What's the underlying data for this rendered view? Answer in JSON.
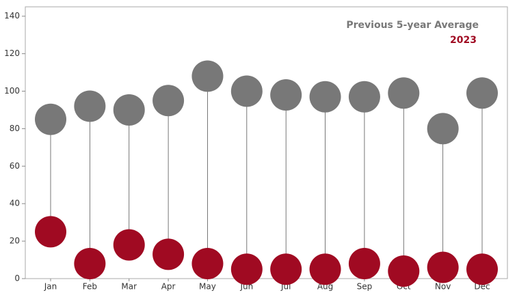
{
  "chart_data": {
    "type": "dumbbell",
    "categories": [
      "Jan",
      "Feb",
      "Mar",
      "Apr",
      "May",
      "Jun",
      "Jul",
      "Aug",
      "Sep",
      "Oct",
      "Nov",
      "Dec"
    ],
    "series": [
      {
        "name": "Previous 5-year Average",
        "color": "#787878",
        "values": [
          85,
          92,
          90,
          95,
          108,
          100,
          98,
          97,
          97,
          99,
          80,
          99
        ]
      },
      {
        "name": "2023",
        "color": "#a00a22",
        "values": [
          25,
          8,
          18,
          13,
          8,
          5,
          5,
          5,
          8,
          4,
          6,
          5
        ]
      }
    ],
    "ylim": [
      0,
      145
    ],
    "yticks": [
      0,
      20,
      40,
      60,
      80,
      100,
      120,
      140
    ],
    "legend": "top-right"
  }
}
